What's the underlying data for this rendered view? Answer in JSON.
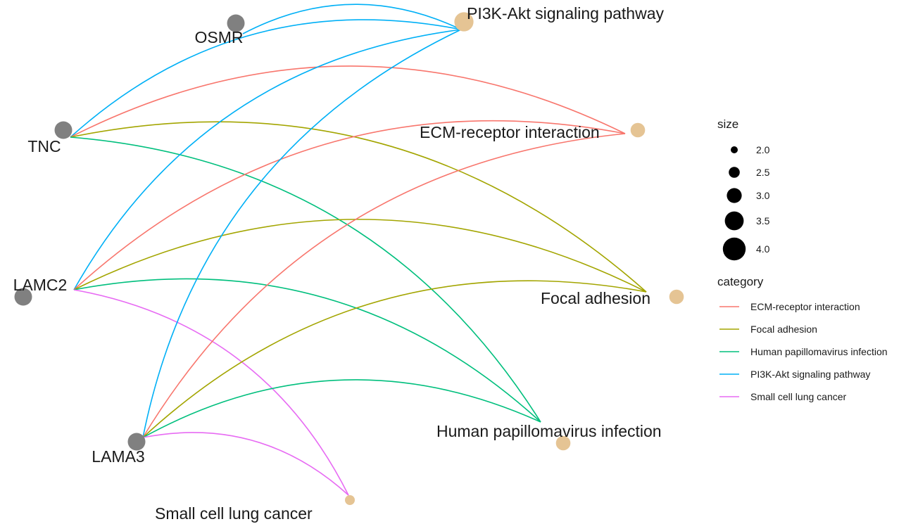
{
  "genes": [
    {
      "id": "OSMR",
      "label": "OSMR"
    },
    {
      "id": "TNC",
      "label": "TNC"
    },
    {
      "id": "LAMC2",
      "label": "LAMC2"
    },
    {
      "id": "LAMA3",
      "label": "LAMA3"
    }
  ],
  "categories": [
    {
      "id": "pi3k",
      "label": "PI3K-Akt signaling pathway",
      "size": 4,
      "color": "#00B0F6"
    },
    {
      "id": "ecm",
      "label": "ECM-receptor interaction",
      "size": 3,
      "color": "#F8766D"
    },
    {
      "id": "focal",
      "label": "Focal adhesion",
      "size": 3,
      "color": "#A3A500"
    },
    {
      "id": "hpv",
      "label": "Human papillomavirus infection",
      "size": 3,
      "color": "#00BF7D"
    },
    {
      "id": "sclc",
      "label": "Small cell lung cancer",
      "size": 2,
      "color": "#E76BF3"
    }
  ],
  "edges": [
    {
      "gene": "OSMR",
      "category": "pi3k"
    },
    {
      "gene": "TNC",
      "category": "pi3k"
    },
    {
      "gene": "TNC",
      "category": "ecm"
    },
    {
      "gene": "TNC",
      "category": "focal"
    },
    {
      "gene": "TNC",
      "category": "hpv"
    },
    {
      "gene": "LAMC2",
      "category": "pi3k"
    },
    {
      "gene": "LAMC2",
      "category": "ecm"
    },
    {
      "gene": "LAMC2",
      "category": "focal"
    },
    {
      "gene": "LAMC2",
      "category": "hpv"
    },
    {
      "gene": "LAMC2",
      "category": "sclc"
    },
    {
      "gene": "LAMA3",
      "category": "pi3k"
    },
    {
      "gene": "LAMA3",
      "category": "ecm"
    },
    {
      "gene": "LAMA3",
      "category": "focal"
    },
    {
      "gene": "LAMA3",
      "category": "hpv"
    },
    {
      "gene": "LAMA3",
      "category": "sclc"
    }
  ],
  "colors": {
    "gene_node": "#808080",
    "category_node": "#E5C494"
  },
  "legend": {
    "size_title": "size",
    "size_entries": [
      {
        "label": "2.0",
        "value": 2.0
      },
      {
        "label": "2.5",
        "value": 2.5
      },
      {
        "label": "3.0",
        "value": 3.0
      },
      {
        "label": "3.5",
        "value": 3.5
      },
      {
        "label": "4.0",
        "value": 4.0
      }
    ],
    "category_title": "category",
    "category_entries": [
      {
        "label": "ECM-receptor interaction",
        "color": "#F8766D"
      },
      {
        "label": "Focal adhesion",
        "color": "#A3A500"
      },
      {
        "label": "Human papillomavirus infection",
        "color": "#00BF7D"
      },
      {
        "label": "PI3K-Akt signaling pathway",
        "color": "#00B0F6"
      },
      {
        "label": "Small cell lung cancer",
        "color": "#E76BF3"
      }
    ]
  }
}
